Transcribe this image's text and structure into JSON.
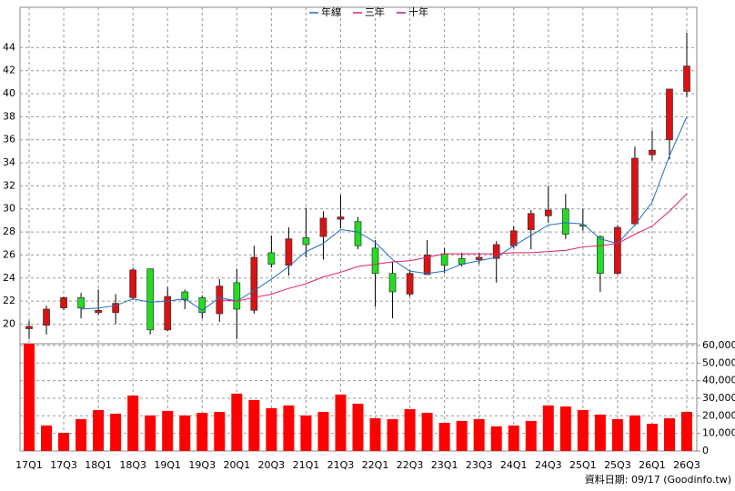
{
  "chart_data": [
    {
      "type": "candlestick",
      "categories": [
        "17Q1",
        null,
        "17Q3",
        null,
        "18Q1",
        null,
        "18Q3",
        null,
        "19Q1",
        null,
        "19Q3",
        null,
        "20Q1",
        null,
        "20Q3",
        null,
        "21Q1",
        null,
        "21Q3",
        null,
        "22Q1",
        null,
        "22Q3",
        null,
        "23Q1",
        null,
        "23Q3",
        null,
        "24Q1",
        null,
        "24Q3",
        null,
        "25Q1",
        null,
        "25Q3",
        null,
        "26Q1",
        null,
        "26Q3"
      ],
      "open": [
        19.6,
        19.9,
        21.4,
        22.3,
        21.0,
        21.0,
        22.3,
        24.8,
        19.5,
        22.8,
        22.3,
        20.9,
        23.6,
        21.2,
        26.2,
        25.1,
        27.5,
        27.6,
        29.1,
        28.9,
        26.6,
        24.4,
        22.6,
        24.3,
        26.1,
        25.7,
        25.6,
        25.7,
        26.8,
        28.2,
        29.4,
        30.0,
        28.6,
        27.6,
        24.4,
        28.7,
        34.7,
        36.0,
        40.2
      ],
      "high": [
        20.3,
        21.6,
        22.4,
        22.7,
        23.0,
        22.6,
        24.9,
        24.8,
        23.2,
        23.0,
        22.5,
        23.9,
        24.8,
        26.8,
        27.7,
        28.4,
        30.1,
        29.8,
        31.2,
        29.3,
        27.3,
        25.4,
        24.7,
        27.3,
        26.6,
        26.2,
        26.2,
        27.2,
        28.5,
        29.9,
        32.0,
        31.3,
        30.0,
        27.7,
        28.6,
        35.4,
        36.8,
        40.4,
        45.3
      ],
      "low": [
        18.7,
        19.1,
        21.2,
        20.5,
        20.8,
        20.0,
        22.1,
        19.1,
        19.4,
        21.3,
        20.5,
        20.2,
        18.7,
        20.9,
        24.9,
        24.2,
        25.8,
        25.6,
        28.3,
        26.5,
        21.5,
        20.5,
        22.4,
        24.3,
        24.4,
        25.0,
        25.2,
        23.6,
        26.6,
        26.5,
        28.8,
        27.4,
        28.1,
        22.8,
        24.3,
        28.5,
        34.2,
        34.3,
        39.7
      ],
      "close": [
        19.8,
        21.3,
        22.3,
        21.4,
        21.2,
        21.8,
        24.7,
        19.5,
        22.4,
        22.1,
        21.0,
        23.3,
        21.3,
        25.8,
        25.2,
        27.4,
        26.9,
        29.2,
        29.3,
        26.8,
        24.4,
        22.8,
        24.4,
        26.0,
        25.1,
        25.2,
        25.8,
        26.9,
        28.1,
        29.6,
        29.9,
        27.8,
        28.5,
        24.4,
        28.4,
        34.4,
        35.1,
        40.4,
        42.4
      ],
      "up_color": "#dd1111",
      "down_color": "#22dd22",
      "series": [
        {
          "name": "年線",
          "color": "#1f6fc5",
          "values": [
            null,
            null,
            null,
            21.3,
            21.4,
            21.6,
            22.2,
            21.9,
            22.0,
            22.2,
            21.2,
            22.3,
            22.0,
            22.9,
            23.9,
            25.0,
            26.3,
            27.0,
            28.2,
            28.0,
            27.1,
            25.6,
            24.6,
            24.4,
            24.6,
            25.2,
            25.5,
            25.8,
            26.8,
            27.7,
            28.6,
            28.8,
            28.7,
            27.4,
            27.0,
            28.6,
            30.6,
            34.6,
            38.0
          ]
        },
        {
          "name": "三年",
          "color": "#e0206a",
          "values": [
            null,
            null,
            null,
            null,
            null,
            null,
            null,
            null,
            null,
            null,
            null,
            22.1,
            22.0,
            22.3,
            22.6,
            23.1,
            23.5,
            24.1,
            24.5,
            25.0,
            25.2,
            25.4,
            25.5,
            25.8,
            26.1,
            26.1,
            26.1,
            26.1,
            26.2,
            26.2,
            26.3,
            26.4,
            26.7,
            26.8,
            27.0,
            27.8,
            28.5,
            29.8,
            31.3
          ]
        },
        {
          "name": "十年",
          "color": "#a0208f",
          "values": [
            null,
            null,
            null,
            null,
            null,
            null,
            null,
            null,
            null,
            null,
            null,
            null,
            null,
            null,
            null,
            null,
            null,
            null,
            null,
            null,
            null,
            null,
            null,
            null,
            null,
            null,
            null,
            null,
            null,
            null,
            null,
            null,
            null,
            null,
            null,
            null,
            null,
            null,
            null
          ]
        }
      ],
      "ylim": [
        18.3,
        47.5
      ],
      "yticks": [
        20,
        22,
        24,
        26,
        28,
        30,
        32,
        34,
        36,
        38,
        40,
        42,
        44
      ],
      "grid": true,
      "legend": "top"
    },
    {
      "type": "bar",
      "values": [
        61000,
        14500,
        10300,
        18100,
        23300,
        21200,
        31500,
        20200,
        22800,
        20200,
        21700,
        22200,
        32600,
        29000,
        24300,
        25900,
        20200,
        22200,
        32100,
        26900,
        18600,
        18100,
        23800,
        21700,
        16000,
        17100,
        18100,
        14000,
        14500,
        17100,
        25900,
        25300,
        23300,
        20700,
        18100,
        20200,
        15500,
        18600,
        22200
      ],
      "color": "#ff0000",
      "ylim": [
        0,
        61000
      ],
      "yticks": [
        0,
        {
          "value": 10000,
          "label": "10,000"
        },
        {
          "value": 20000,
          "label": "20,000"
        },
        {
          "value": 30000,
          "label": "30,000"
        },
        {
          "value": 40000,
          "label": "40,000"
        },
        {
          "value": 50000,
          "label": "50,000"
        },
        {
          "value": 60000,
          "label": "60,000"
        }
      ],
      "grid": true
    }
  ],
  "footer": {
    "source": "資料日期: 09/17 (Goodinfo.tw)"
  }
}
